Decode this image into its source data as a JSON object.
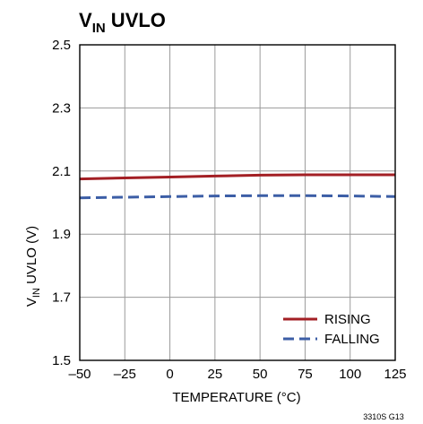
{
  "chart_data": {
    "type": "line",
    "title": {
      "main": "V",
      "sub": "IN",
      "rest": " UVLO"
    },
    "xlabel": "TEMPERATURE (°C)",
    "ylabel": {
      "main": "V",
      "sub": "IN",
      "rest": " UVLO (V)"
    },
    "xlim": [
      -50,
      125
    ],
    "ylim": [
      1.5,
      2.5
    ],
    "x_ticks": [
      -50,
      -25,
      0,
      25,
      50,
      75,
      100,
      125
    ],
    "x_tick_labels": [
      "–50",
      "–25",
      "0",
      "25",
      "50",
      "75",
      "100",
      "125"
    ],
    "y_ticks": [
      1.5,
      1.7,
      1.9,
      2.1,
      2.3,
      2.5
    ],
    "y_tick_labels": [
      "1.5",
      "1.7",
      "1.9",
      "2.1",
      "2.3",
      "2.5"
    ],
    "grid": true,
    "legend_position": "bottom-right",
    "series": [
      {
        "name": "RISING",
        "color": "#a31f24",
        "style": "solid",
        "x": [
          -50,
          -25,
          0,
          25,
          50,
          75,
          100,
          125
        ],
        "values": [
          2.075,
          2.078,
          2.081,
          2.084,
          2.087,
          2.088,
          2.088,
          2.088
        ]
      },
      {
        "name": "FALLING",
        "color": "#3c5ea6",
        "style": "dashed",
        "x": [
          -50,
          -25,
          0,
          25,
          50,
          75,
          100,
          125
        ],
        "values": [
          2.015,
          2.017,
          2.019,
          2.021,
          2.022,
          2.022,
          2.021,
          2.019
        ]
      }
    ],
    "figure_id": "3310S G13"
  }
}
